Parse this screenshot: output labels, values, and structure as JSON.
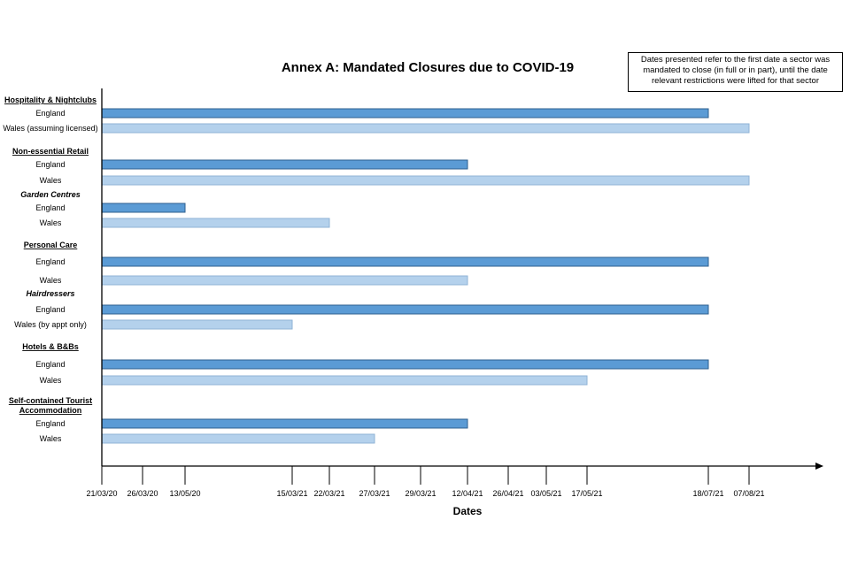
{
  "chart_data": {
    "type": "bar",
    "orientation": "horizontal",
    "title": "Annex A: Mandated Closures due to COVID-19",
    "note": "Dates presented refer to the first date a sector was mandated to close (in full or in part), until the date relevant restrictions were lifted for that sector",
    "xlabel": "Dates",
    "x_start": "21/03/20",
    "x_ticks": [
      "21/03/20",
      "26/03/20",
      "13/05/20",
      "15/03/21",
      "22/03/21",
      "27/03/21",
      "29/03/21",
      "12/04/21",
      "26/04/21",
      "03/05/21",
      "17/05/21",
      "18/07/21",
      "07/08/21"
    ],
    "colors": {
      "England": "#5b9bd5",
      "England_edge": "#2e5f8f",
      "Wales": "#b4d1ec",
      "Wales_edge": "#8fb3d6"
    },
    "groups": [
      {
        "heading": "Hospitality & Nightclubs",
        "style": "bold-underline",
        "bars": [
          {
            "label": "England",
            "series": "England",
            "end": "18/07/21"
          },
          {
            "label": "Wales (assuming licensed)",
            "series": "Wales",
            "end": "07/08/21"
          }
        ]
      },
      {
        "heading": "Non-essential Retail",
        "style": "bold-underline",
        "bars": [
          {
            "label": "England",
            "series": "England",
            "end": "12/04/21"
          },
          {
            "label": "Wales",
            "series": "Wales",
            "end": "07/08/21"
          }
        ]
      },
      {
        "heading": "Garden Centres",
        "style": "bold-italic",
        "bars": [
          {
            "label": "England",
            "series": "England",
            "end": "13/05/20"
          },
          {
            "label": "Wales",
            "series": "Wales",
            "end": "22/03/21"
          }
        ]
      },
      {
        "heading": "Personal Care",
        "style": "bold-underline",
        "bars": [
          {
            "label": "England",
            "series": "England",
            "end": "18/07/21"
          },
          {
            "label": "Wales",
            "series": "Wales",
            "end": "12/04/21"
          }
        ]
      },
      {
        "heading": "Hairdressers",
        "style": "bold-italic",
        "bars": [
          {
            "label": "England",
            "series": "England",
            "end": "18/07/21"
          },
          {
            "label": "Wales (by appt only)",
            "series": "Wales",
            "end": "15/03/21"
          }
        ]
      },
      {
        "heading": "Hotels & B&Bs",
        "style": "bold-underline",
        "bars": [
          {
            "label": "England",
            "series": "England",
            "end": "18/07/21"
          },
          {
            "label": "Wales",
            "series": "Wales",
            "end": "17/05/21"
          }
        ]
      },
      {
        "heading": "Self-contained Tourist Accommodation",
        "style": "bold-underline",
        "bars": [
          {
            "label": "England",
            "series": "England",
            "end": "12/04/21"
          },
          {
            "label": "Wales",
            "series": "Wales",
            "end": "27/03/21"
          }
        ]
      }
    ]
  }
}
